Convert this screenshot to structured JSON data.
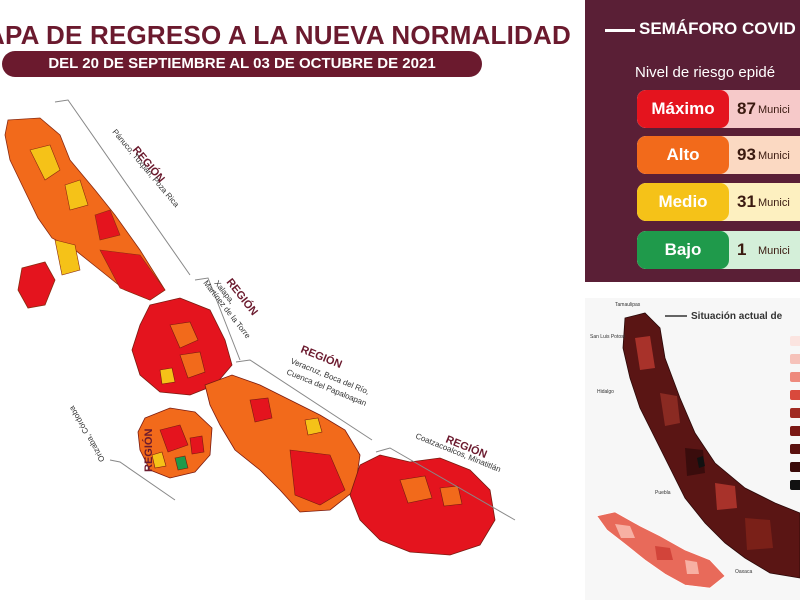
{
  "header": {
    "title": "APA DE REGRESO A LA NUEVA NORMALIDAD",
    "date_range": "DEL 20 DE SEPTIEMBRE  AL 03 DE OCTUBRE DE 2021"
  },
  "regions": [
    {
      "label": "REGIÓN",
      "name": "Pánuco, Tuxpan, Poza Rica"
    },
    {
      "label": "REGIÓN",
      "name_line1": "Xalapa,",
      "name_line2": "Martínez de la Torre"
    },
    {
      "label": "REGIÓN",
      "name_line1": "Veracruz, Boca del Río,",
      "name_line2": "Cuenca del Papaloapan"
    },
    {
      "label": "REGIÓN",
      "name": "Coatzacoalcos, Minatitlán"
    },
    {
      "label": "REGIÓN",
      "name": "Orizaba, Córdoba"
    }
  ],
  "semaforo": {
    "title": "SEMÁFORO COVID",
    "subtitle": "Nivel de riesgo epidé",
    "levels": [
      {
        "label": "Máximo",
        "count": "87",
        "unit": "Munici",
        "color": "#e4141e",
        "bg": "#f6c9c9"
      },
      {
        "label": "Alto",
        "count": "93",
        "unit": "Munici",
        "color": "#f26a1b",
        "bg": "#fbd9c2"
      },
      {
        "label": "Medio",
        "count": "31",
        "unit": "Munici",
        "color": "#f5c218",
        "bg": "#fdf0c0"
      },
      {
        "label": "Bajo",
        "count": "1",
        "unit": "Munici",
        "color": "#1f9a4b",
        "bg": "#d4efd9"
      }
    ]
  },
  "situacion": {
    "title": "Situación actual de",
    "places": [
      "Tamaulipas",
      "San Luis Potosí",
      "Hidalgo",
      "Puebla",
      "Oaxaca"
    ]
  },
  "colors": {
    "maximo": "#e4141e",
    "alto": "#f26a1b",
    "medio": "#f5c218",
    "bajo": "#1f9a4b",
    "brand": "#6b1a2e"
  }
}
